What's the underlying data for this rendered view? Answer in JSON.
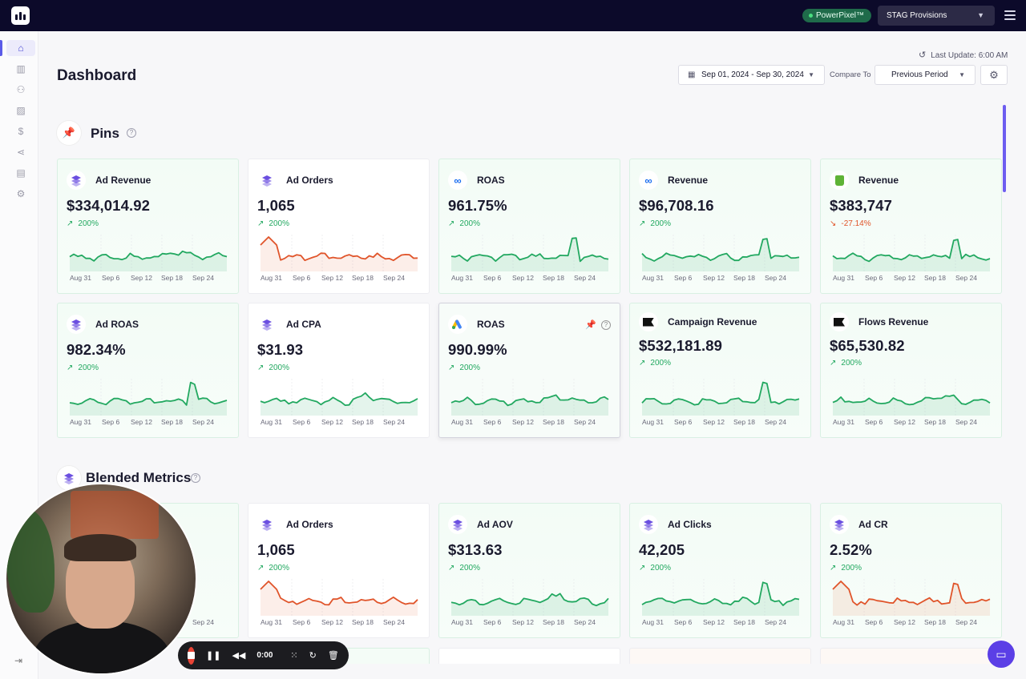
{
  "topbar": {
    "badge": "PowerPixel™",
    "store": "STAG Provisions"
  },
  "sidebar": {
    "items": [
      {
        "name": "home",
        "glyph": "⌂"
      },
      {
        "name": "analytics",
        "glyph": "▥"
      },
      {
        "name": "customers",
        "glyph": "👥"
      },
      {
        "name": "creatives",
        "glyph": "▨"
      },
      {
        "name": "billing",
        "glyph": "$"
      },
      {
        "name": "attribution",
        "glyph": "⋖"
      },
      {
        "name": "reports",
        "glyph": "▤"
      },
      {
        "name": "settings",
        "glyph": "⚙"
      }
    ]
  },
  "header": {
    "last_update": "Last Update: 6:00 AM",
    "title": "Dashboard",
    "date_range": "Sep 01, 2024 - Sep 30, 2024",
    "compare_label": "Compare To",
    "compare_value": "Previous Period"
  },
  "sections": {
    "pins": "Pins",
    "blended": "Blended Metrics"
  },
  "x_labels": [
    "Aug 31",
    "Sep 6",
    "Sep 12",
    "Sep 18",
    "Sep 24"
  ],
  "colors": {
    "up": "#22a860",
    "down": "#e0542a",
    "accent": "#5b3fe6"
  },
  "pins": [
    {
      "title": "Ad Revenue",
      "value": "$334,014.92",
      "change": "200%",
      "dir": "up",
      "icon": "stack-icon"
    },
    {
      "title": "Ad Orders",
      "value": "1,065",
      "change": "200%",
      "dir": "up",
      "icon": "stack-icon",
      "line": "down"
    },
    {
      "title": "ROAS",
      "value": "961.75%",
      "change": "200%",
      "dir": "up",
      "icon": "meta-icon"
    },
    {
      "title": "Revenue",
      "value": "$96,708.16",
      "change": "200%",
      "dir": "up",
      "icon": "meta-icon"
    },
    {
      "title": "Revenue",
      "value": "$383,747",
      "change": "-27.14%",
      "dir": "down",
      "icon": "shopify-icon"
    },
    {
      "title": "Ad ROAS",
      "value": "982.34%",
      "change": "200%",
      "dir": "up",
      "icon": "stack-icon"
    },
    {
      "title": "Ad CPA",
      "value": "$31.93",
      "change": "200%",
      "dir": "up",
      "icon": "stack-icon"
    },
    {
      "title": "ROAS",
      "value": "990.99%",
      "change": "200%",
      "dir": "up",
      "icon": "google-ads-icon"
    },
    {
      "title": "Campaign Revenue",
      "value": "$532,181.89",
      "change": "200%",
      "dir": "up",
      "icon": "klaviyo-icon"
    },
    {
      "title": "Flows Revenue",
      "value": "$65,530.82",
      "change": "200%",
      "dir": "up",
      "icon": "klaviyo-icon"
    }
  ],
  "blended": [
    {
      "title": "Ad Orders",
      "value": "1,065",
      "change": "200%",
      "dir": "up",
      "icon": "stack-icon",
      "line": "down"
    },
    {
      "title": "Ad AOV",
      "value": "$313.63",
      "change": "200%",
      "dir": "up",
      "icon": "stack-icon"
    },
    {
      "title": "Ad Clicks",
      "value": "42,205",
      "change": "200%",
      "dir": "up",
      "icon": "stack-icon"
    },
    {
      "title": "Ad CR",
      "value": "2.52%",
      "change": "200%",
      "dir": "up",
      "icon": "stack-icon",
      "line": "down"
    }
  ],
  "first_blended_xlabel": "Sep 24",
  "recorder": {
    "time": "0:00"
  }
}
